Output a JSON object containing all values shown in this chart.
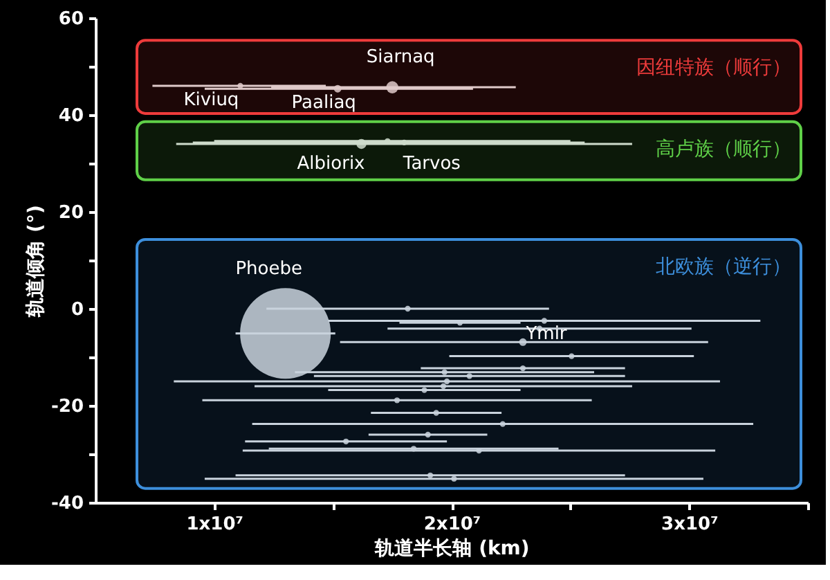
{
  "chart_data": {
    "type": "bubble",
    "xlabel": "轨道半长轴 (km)",
    "ylabel": "轨道倾角 (°)",
    "xlim": [
      5000000,
      35000000
    ],
    "xticks": [
      {
        "value": 10000000,
        "label": "1x10⁷"
      },
      {
        "value": 15000000,
        "label": null
      },
      {
        "value": 20000000,
        "label": "2x10⁷"
      },
      {
        "value": 25000000,
        "label": null
      },
      {
        "value": 30000000,
        "label": "3x10⁷"
      },
      {
        "value": 35000000,
        "label": null
      }
    ],
    "ylim": [
      -40,
      60
    ],
    "yticks": [
      -40,
      {
        "value": -30,
        "label": null
      },
      -20,
      {
        "value": -10,
        "label": null
      },
      0,
      {
        "value": 10,
        "label": null
      },
      20,
      {
        "value": 30,
        "label": null
      },
      40,
      {
        "value": 50,
        "label": null
      },
      60
    ],
    "grid": false,
    "marker": "circle",
    "series": [
      {
        "color": "#dddddd",
        "x": [
          11100000,
          15200000,
          17500000,
          16200000,
          18000000,
          17300000,
          13000000,
          23000000,
          18150000,
          23900000,
          20350000,
          23700000,
          25050000,
          23000000,
          19700000,
          20750000,
          19800000,
          19650000,
          18850000,
          17700000,
          19350000,
          22150000,
          19000000,
          15550000,
          18400000,
          21150000,
          19100000,
          20100000
        ],
        "values": [
          46,
          45.4,
          45.7,
          34,
          34.3,
          34.6,
          -5.1,
          -6.9,
          0,
          -2.5,
          -2.9,
          -4.1,
          -9.8,
          -12.3,
          -13.1,
          -13.9,
          -15,
          -16,
          -16.8,
          -18.9,
          -21.5,
          -23.8,
          -26,
          -27.4,
          -28.9,
          -29.3,
          -34.4,
          -35.1
        ],
        "sizes": [
          0.004,
          0.007,
          0.018,
          0.012,
          0.004,
          0.004,
          1,
          0.007,
          0.004,
          0.004,
          0.004,
          0.004,
          0.004,
          0.004,
          0.004,
          0.004,
          0.004,
          0.004,
          0.004,
          0.004,
          0.004,
          0.004,
          0.004,
          0.004,
          0.004,
          0.004,
          0.004,
          0.004
        ],
        "xerrors": [
          [
            7400000,
            14700000
          ],
          [
            9600000,
            20900000
          ],
          [
            12400000,
            22700000
          ],
          [
            8400000,
            27600000
          ],
          [
            9100000,
            25600000
          ],
          [
            10000000,
            25000000
          ],
          [
            10900000,
            15100000
          ],
          [
            15300000,
            30800000
          ],
          [
            12200000,
            24100000
          ],
          [
            14800000,
            33000000
          ],
          [
            17800000,
            22900000
          ],
          [
            17300000,
            30100000
          ],
          [
            19900000,
            30200000
          ],
          [
            18700000,
            27300000
          ],
          [
            13400000,
            26000000
          ],
          [
            14200000,
            27300000
          ],
          [
            8300000,
            31300000
          ],
          [
            11700000,
            27600000
          ],
          [
            14800000,
            22900000
          ],
          [
            9500000,
            25900000
          ],
          [
            16600000,
            22100000
          ],
          [
            11600000,
            32700000
          ],
          [
            16500000,
            21500000
          ],
          [
            11300000,
            19800000
          ],
          [
            12300000,
            24500000
          ],
          [
            11200000,
            31100000
          ],
          [
            10900000,
            27300000
          ],
          [
            9600000,
            30600000
          ]
        ]
      }
    ],
    "bands": [
      {
        "axis": "y",
        "from": 40.3,
        "to": 55.4,
        "label": "因纽特族（顺行）",
        "color": "#ee3b3b"
      },
      {
        "axis": "y",
        "from": 26.6,
        "to": 38.6,
        "label": "高卢族（顺行）",
        "color": "#5fd048"
      },
      {
        "axis": "y",
        "from": -37.1,
        "to": 14.3,
        "label": "北欧族（逆行）",
        "color": "#3d8fdc"
      }
    ],
    "annotations": [
      {
        "text": "Kiviuq",
        "x": 11100000,
        "y": 46
      },
      {
        "text": "Paaliaq",
        "x": 15200000,
        "y": 45.4
      },
      {
        "text": "Siarnaq",
        "x": 17500000,
        "y": 45.7
      },
      {
        "text": "Albiorix",
        "x": 16200000,
        "y": 34
      },
      {
        "text": "Tarvos",
        "x": 18000000,
        "y": 34.3
      },
      {
        "text": "Phoebe",
        "x": 13000000,
        "y": 5.5
      },
      {
        "text": "Ymir",
        "x": 23000000,
        "y": -6.9
      }
    ]
  }
}
